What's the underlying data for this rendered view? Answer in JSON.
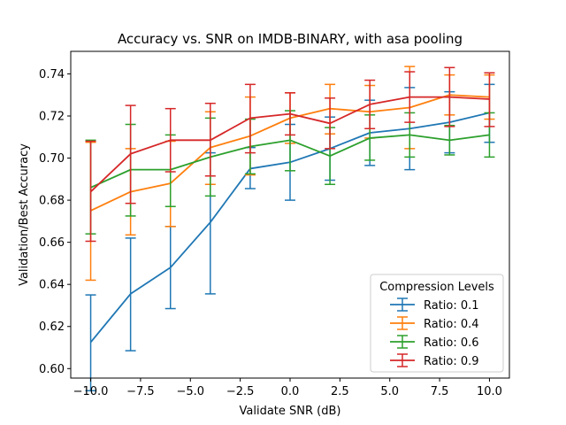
{
  "chart_data": {
    "type": "line",
    "title": "Accuracy vs. SNR on IMDB-BINARY, with asa pooling",
    "xlabel": "Validate SNR (dB)",
    "ylabel": "Validation/Best Accuracy",
    "xlim": [
      -11,
      11
    ],
    "ylim": [
      0.5955,
      0.7507
    ],
    "xticks": [
      -10.0,
      -7.5,
      -5.0,
      -2.5,
      0.0,
      2.5,
      5.0,
      7.5,
      10.0
    ],
    "xtick_labels": [
      "−10.0",
      "−7.5",
      "−5.0",
      "−2.5",
      "0.0",
      "2.5",
      "5.0",
      "7.5",
      "10.0"
    ],
    "yticks": [
      0.6,
      0.62,
      0.64,
      0.66,
      0.68,
      0.7,
      0.72,
      0.74
    ],
    "ytick_labels": [
      "0.60",
      "0.62",
      "0.64",
      "0.66",
      "0.68",
      "0.70",
      "0.72",
      "0.74"
    ],
    "grid": false,
    "legend": {
      "title": "Compression Levels",
      "placement": "lower-right"
    },
    "x": [
      -10,
      -8,
      -6,
      -4,
      -2,
      0,
      2,
      4,
      6,
      8,
      10
    ],
    "series": [
      {
        "name": "Ratio: 0.1",
        "color": "#1f77b4",
        "values": [
          0.6125,
          0.6355,
          0.648,
          0.6695,
          0.695,
          0.698,
          0.7045,
          0.712,
          0.714,
          0.717,
          0.7215
        ],
        "lower": [
          0.5895,
          0.6085,
          0.6285,
          0.6355,
          0.6855,
          0.68,
          0.6895,
          0.6965,
          0.6945,
          0.7025,
          0.7075
        ],
        "upper": [
          0.635,
          0.662,
          0.6675,
          0.7025,
          0.705,
          0.716,
          0.7195,
          0.7275,
          0.7335,
          0.7315,
          0.735
        ]
      },
      {
        "name": "Ratio: 0.4",
        "color": "#ff7f0e",
        "values": [
          0.675,
          0.684,
          0.688,
          0.705,
          0.7105,
          0.719,
          0.7235,
          0.722,
          0.724,
          0.73,
          0.729
        ],
        "lower": [
          0.642,
          0.6635,
          0.6675,
          0.6875,
          0.692,
          0.707,
          0.7115,
          0.7095,
          0.7045,
          0.7205,
          0.7185
        ],
        "upper": [
          0.7075,
          0.7045,
          0.708,
          0.722,
          0.729,
          0.731,
          0.735,
          0.7345,
          0.7435,
          0.7395,
          0.7395
        ]
      },
      {
        "name": "Ratio: 0.6",
        "color": "#2ca02c",
        "values": [
          0.686,
          0.6945,
          0.6945,
          0.7005,
          0.7055,
          0.7085,
          0.701,
          0.7095,
          0.711,
          0.7085,
          0.711
        ],
        "lower": [
          0.664,
          0.6725,
          0.677,
          0.682,
          0.6925,
          0.694,
          0.6875,
          0.699,
          0.7005,
          0.7015,
          0.7005
        ],
        "upper": [
          0.7085,
          0.716,
          0.711,
          0.719,
          0.7185,
          0.7225,
          0.7145,
          0.7205,
          0.7215,
          0.7155,
          0.7215
        ]
      },
      {
        "name": "Ratio: 0.9",
        "color": "#d62728",
        "values": [
          0.684,
          0.702,
          0.7085,
          0.7085,
          0.719,
          0.721,
          0.7165,
          0.7255,
          0.729,
          0.729,
          0.728
        ],
        "lower": [
          0.6605,
          0.6785,
          0.6935,
          0.6915,
          0.7025,
          0.711,
          0.7045,
          0.714,
          0.717,
          0.715,
          0.715
        ],
        "upper": [
          0.708,
          0.725,
          0.7235,
          0.726,
          0.735,
          0.731,
          0.7285,
          0.737,
          0.741,
          0.743,
          0.7405
        ]
      }
    ]
  }
}
